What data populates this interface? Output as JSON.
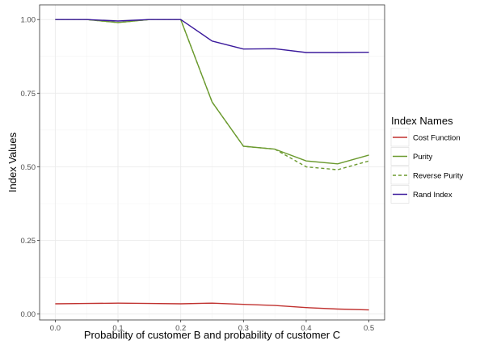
{
  "chart_data": {
    "type": "line",
    "title": "",
    "xlabel": "Probability of customer B and probability of customer C",
    "ylabel": "Index Values",
    "xlim": [
      -0.025,
      0.525
    ],
    "ylim": [
      -0.02,
      1.05
    ],
    "x_ticks": [
      0.0,
      0.1,
      0.2,
      0.3,
      0.4,
      0.5
    ],
    "x_tick_labels": [
      "0.0",
      "0.1",
      "0.2",
      "0.3",
      "0.4",
      "0.5"
    ],
    "y_ticks": [
      0.0,
      0.25,
      0.5,
      0.75,
      1.0
    ],
    "y_tick_labels": [
      "0.00",
      "0.25",
      "0.50",
      "0.75",
      "1.00"
    ],
    "grid": true,
    "legend": {
      "title": "Index Names",
      "placement": "right"
    },
    "series": [
      {
        "name": "Cost Function",
        "color": "#c0312f",
        "dash": "solid",
        "x": [
          0.0,
          0.05,
          0.1,
          0.15,
          0.2,
          0.25,
          0.3,
          0.35,
          0.4,
          0.45,
          0.5
        ],
        "y": [
          0.035,
          0.036,
          0.037,
          0.036,
          0.035,
          0.037,
          0.033,
          0.029,
          0.022,
          0.017,
          0.014
        ]
      },
      {
        "name": "Purity",
        "color": "#6b9a2f",
        "dash": "solid",
        "x": [
          0.0,
          0.05,
          0.1,
          0.15,
          0.2,
          0.25,
          0.3,
          0.35,
          0.4,
          0.45,
          0.5
        ],
        "y": [
          1.0,
          1.0,
          0.99,
          1.0,
          1.0,
          0.72,
          0.57,
          0.56,
          0.52,
          0.51,
          0.54
        ]
      },
      {
        "name": "Reverse Purity",
        "color": "#6b9a2f",
        "dash": "dashed",
        "x": [
          0.0,
          0.05,
          0.1,
          0.15,
          0.2,
          0.25,
          0.3,
          0.35,
          0.4,
          0.45,
          0.5
        ],
        "y": [
          1.0,
          1.0,
          0.99,
          1.0,
          1.0,
          0.72,
          0.57,
          0.56,
          0.5,
          0.49,
          0.52
        ]
      },
      {
        "name": "Rand Index",
        "color": "#3b1a9c",
        "dash": "solid",
        "x": [
          0.0,
          0.05,
          0.1,
          0.15,
          0.2,
          0.25,
          0.3,
          0.35,
          0.4,
          0.45,
          0.5
        ],
        "y": [
          1.0,
          1.0,
          0.995,
          1.0,
          1.0,
          0.927,
          0.9,
          0.901,
          0.888,
          0.888,
          0.889
        ]
      }
    ]
  }
}
